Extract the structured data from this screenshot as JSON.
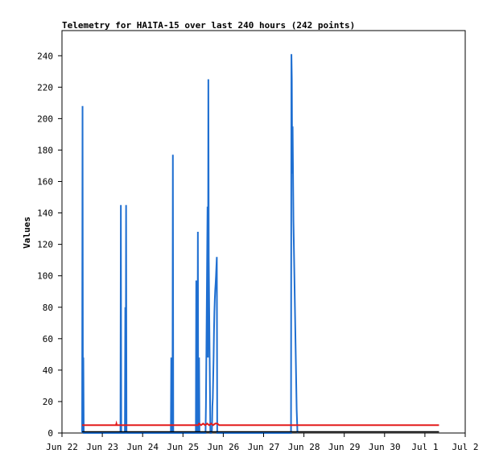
{
  "chart_data": {
    "type": "line",
    "title": "Telemetry for HA1TA-15 over last 240 hours (242 points)",
    "ylabel": "Values",
    "xlabel": "",
    "x_ticks": [
      "Jun 22",
      "Jun 23",
      "Jun 24",
      "Jun 25",
      "Jun 26",
      "Jun 27",
      "Jun 28",
      "Jun 29",
      "Jun 30",
      "Jul 1",
      "Jul 2"
    ],
    "y_ticks": [
      "0",
      "20",
      "40",
      "60",
      "80",
      "100",
      "120",
      "140",
      "160",
      "180",
      "200",
      "220",
      "240"
    ],
    "xlim": [
      0,
      10
    ],
    "ylim": [
      0,
      256
    ],
    "grid": false,
    "legend": "none",
    "series": [
      {
        "color": "#1f6fd1",
        "points": [
          [
            0.5,
            0
          ],
          [
            0.51,
            208
          ],
          [
            0.52,
            0
          ],
          [
            0.53,
            48
          ],
          [
            0.54,
            0
          ],
          [
            1.45,
            0
          ],
          [
            1.46,
            145
          ],
          [
            1.47,
            0
          ],
          [
            1.56,
            0
          ],
          [
            1.57,
            80
          ],
          [
            1.58,
            0
          ],
          [
            1.59,
            145
          ],
          [
            1.6,
            0
          ],
          [
            2.7,
            0
          ],
          [
            2.71,
            48
          ],
          [
            2.72,
            0
          ],
          [
            2.74,
            0
          ],
          [
            2.75,
            177
          ],
          [
            2.76,
            0
          ],
          [
            3.32,
            0
          ],
          [
            3.33,
            97
          ],
          [
            3.34,
            0
          ],
          [
            3.36,
            0
          ],
          [
            3.37,
            128
          ],
          [
            3.38,
            0
          ],
          [
            3.39,
            0
          ],
          [
            3.4,
            48
          ],
          [
            3.41,
            0
          ],
          [
            3.56,
            0
          ],
          [
            3.57,
            17
          ],
          [
            3.58,
            48
          ],
          [
            3.59,
            80
          ],
          [
            3.6,
            112
          ],
          [
            3.61,
            144
          ],
          [
            3.62,
            48
          ],
          [
            3.63,
            225
          ],
          [
            3.64,
            112
          ],
          [
            3.65,
            81
          ],
          [
            3.68,
            0
          ],
          [
            3.7,
            0
          ],
          [
            3.72,
            2
          ],
          [
            3.73,
            17
          ],
          [
            3.74,
            22
          ],
          [
            3.75,
            35
          ],
          [
            3.76,
            48
          ],
          [
            3.77,
            65
          ],
          [
            3.78,
            77
          ],
          [
            3.79,
            85
          ],
          [
            3.8,
            91
          ],
          [
            3.81,
            95
          ],
          [
            3.82,
            100
          ],
          [
            3.83,
            106
          ],
          [
            3.84,
            112
          ],
          [
            3.85,
            0
          ],
          [
            5.68,
            0
          ],
          [
            5.69,
            241
          ],
          [
            5.7,
            225
          ],
          [
            5.71,
            165
          ],
          [
            5.72,
            195
          ],
          [
            5.73,
            165
          ],
          [
            5.74,
            135
          ],
          [
            5.76,
            105
          ],
          [
            5.78,
            75
          ],
          [
            5.8,
            45
          ],
          [
            5.82,
            15
          ],
          [
            5.84,
            0
          ]
        ]
      },
      {
        "color": "#e31b1b",
        "points": [
          [
            0.5,
            5
          ],
          [
            1.0,
            5
          ],
          [
            1.34,
            5
          ],
          [
            1.35,
            6
          ],
          [
            1.36,
            5
          ],
          [
            3.38,
            5
          ],
          [
            3.4,
            6
          ],
          [
            3.45,
            5
          ],
          [
            3.5,
            6
          ],
          [
            3.55,
            5
          ],
          [
            3.6,
            6
          ],
          [
            3.65,
            5
          ],
          [
            3.7,
            6
          ],
          [
            3.75,
            5
          ],
          [
            3.8,
            6
          ],
          [
            3.85,
            6
          ],
          [
            3.9,
            5
          ],
          [
            9.0,
            5
          ],
          [
            9.35,
            5
          ]
        ]
      },
      {
        "color": "#000000",
        "points": [
          [
            0.5,
            0.8
          ],
          [
            9.35,
            0.8
          ]
        ]
      }
    ]
  }
}
